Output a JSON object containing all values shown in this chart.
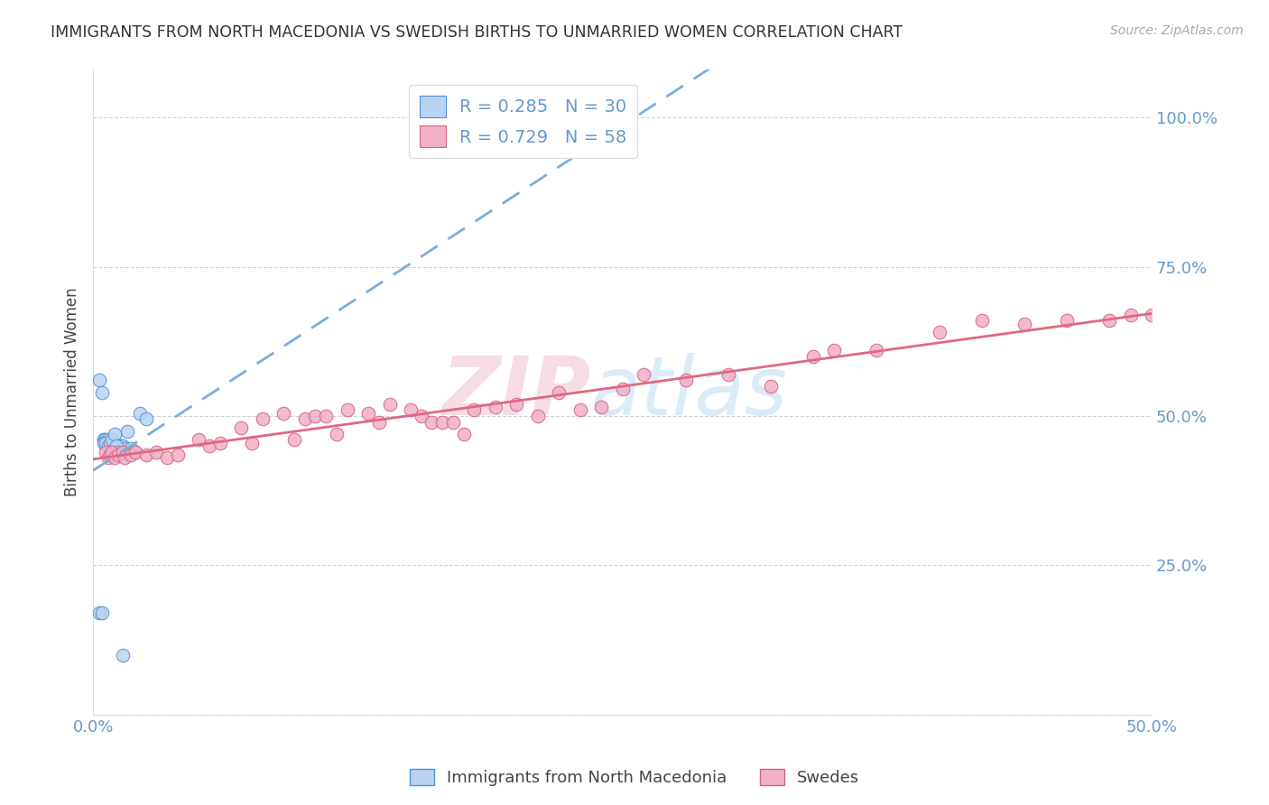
{
  "title": "IMMIGRANTS FROM NORTH MACEDONIA VS SWEDISH BIRTHS TO UNMARRIED WOMEN CORRELATION CHART",
  "source": "Source: ZipAtlas.com",
  "ylabel": "Births to Unmarried Women",
  "xlim": [
    0.0,
    0.5
  ],
  "ylim": [
    0.0,
    1.08
  ],
  "xticks": [
    0.0,
    0.1,
    0.2,
    0.3,
    0.4,
    0.5
  ],
  "xticklabels": [
    "0.0%",
    "",
    "",
    "",
    "",
    "50.0%"
  ],
  "yticks": [
    0.0,
    0.25,
    0.5,
    0.75,
    1.0
  ],
  "yticklabels_right": [
    "",
    "25.0%",
    "50.0%",
    "75.0%",
    "100.0%"
  ],
  "blue_fill": "#b8d4f0",
  "blue_edge": "#5090d0",
  "pink_fill": "#f0b0c8",
  "pink_edge": "#d86080",
  "blue_line_color": "#7aaedd",
  "pink_line_color": "#e06880",
  "legend_r_blue": "R = 0.285",
  "legend_n_blue": "N = 30",
  "legend_r_pink": "R = 0.729",
  "legend_n_pink": "N = 58",
  "tick_color": "#6699cc",
  "blue_x": [
    0.003,
    0.004,
    0.005,
    0.005,
    0.006,
    0.007,
    0.008,
    0.009,
    0.01,
    0.011,
    0.012,
    0.013,
    0.014,
    0.015,
    0.016,
    0.018,
    0.02,
    0.022,
    0.025,
    0.003,
    0.004,
    0.005,
    0.006,
    0.007,
    0.008,
    0.009,
    0.01,
    0.011,
    0.012,
    0.014
  ],
  "blue_y": [
    0.56,
    0.54,
    0.46,
    0.46,
    0.46,
    0.46,
    0.455,
    0.455,
    0.455,
    0.45,
    0.45,
    0.45,
    0.45,
    0.445,
    0.475,
    0.445,
    0.44,
    0.505,
    0.495,
    0.17,
    0.17,
    0.455,
    0.455,
    0.45,
    0.455,
    0.46,
    0.47,
    0.45,
    0.44,
    0.1
  ],
  "pink_x": [
    0.006,
    0.007,
    0.008,
    0.009,
    0.01,
    0.012,
    0.014,
    0.015,
    0.018,
    0.02,
    0.025,
    0.03,
    0.035,
    0.04,
    0.05,
    0.055,
    0.06,
    0.07,
    0.075,
    0.08,
    0.09,
    0.095,
    0.1,
    0.105,
    0.11,
    0.115,
    0.12,
    0.13,
    0.135,
    0.14,
    0.15,
    0.155,
    0.16,
    0.165,
    0.17,
    0.175,
    0.18,
    0.19,
    0.2,
    0.21,
    0.22,
    0.23,
    0.24,
    0.25,
    0.26,
    0.28,
    0.3,
    0.32,
    0.34,
    0.35,
    0.37,
    0.4,
    0.42,
    0.44,
    0.46,
    0.48,
    0.49,
    0.5
  ],
  "pink_y": [
    0.44,
    0.43,
    0.435,
    0.44,
    0.43,
    0.435,
    0.44,
    0.43,
    0.435,
    0.44,
    0.435,
    0.44,
    0.43,
    0.435,
    0.46,
    0.45,
    0.455,
    0.48,
    0.455,
    0.495,
    0.505,
    0.46,
    0.495,
    0.5,
    0.5,
    0.47,
    0.51,
    0.505,
    0.49,
    0.52,
    0.51,
    0.5,
    0.49,
    0.49,
    0.49,
    0.47,
    0.51,
    0.515,
    0.52,
    0.5,
    0.54,
    0.51,
    0.515,
    0.545,
    0.57,
    0.56,
    0.57,
    0.55,
    0.6,
    0.61,
    0.61,
    0.64,
    0.66,
    0.655,
    0.66,
    0.66,
    0.67,
    0.67
  ],
  "marker_size": 110
}
